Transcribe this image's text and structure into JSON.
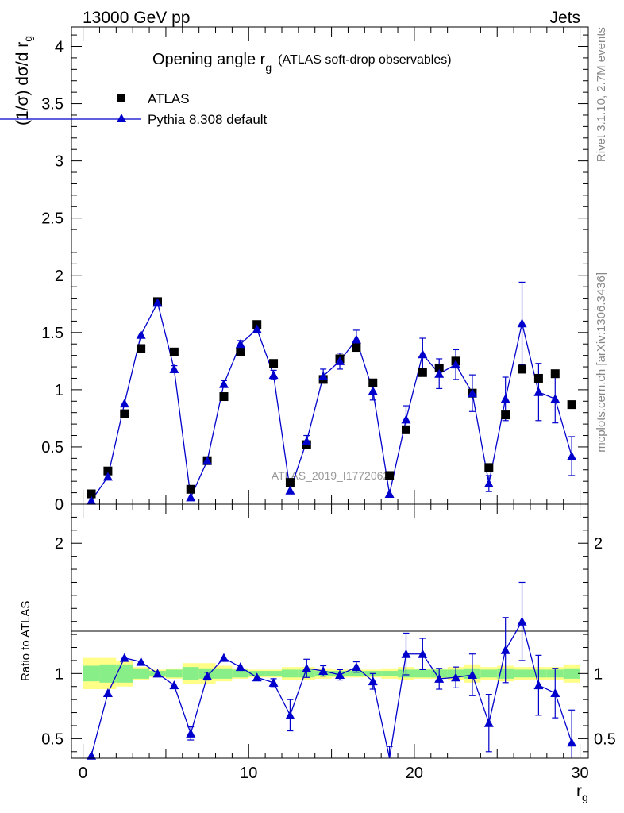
{
  "header": {
    "left": "13000 GeV pp",
    "right": "Jets",
    "side_rivet": "Rivet 3.1.10,  2.7M events",
    "side_mcplots": "mcplots.cern.ch [arXiv:1306.3436]",
    "watermark": "ATLAS_2019_I1772062"
  },
  "chart_data": [
    {
      "type": "line",
      "title": "Opening angle r",
      "title_sub": "g",
      "title_suffix": "(ATLAS soft-drop observables)",
      "ylabel": "(1/σ) dσ/d r",
      "ylabel_sub": "g",
      "xlim": [
        -0.7,
        30.5
      ],
      "ylim": [
        0,
        4.17
      ],
      "yticks": [
        "0",
        "0.5",
        "1",
        "1.5",
        "2",
        "2.5",
        "3",
        "3.5",
        "4"
      ],
      "legend_placement": "top-left",
      "x": [
        0.5,
        1.5,
        2.5,
        3.5,
        4.5,
        5.5,
        6.5,
        7.5,
        8.5,
        9.5,
        10.5,
        11.5,
        12.5,
        13.5,
        14.5,
        15.5,
        16.5,
        17.5,
        18.5,
        19.5,
        20.5,
        21.5,
        22.5,
        23.5,
        24.5,
        25.5,
        26.5,
        27.5,
        28.5,
        29.5
      ],
      "series": [
        {
          "name": "ATLAS",
          "color": "#000000",
          "marker": "square",
          "values": [
            0.09,
            0.29,
            0.79,
            1.36,
            1.77,
            1.33,
            0.13,
            0.38,
            0.94,
            1.33,
            1.57,
            1.23,
            0.19,
            0.52,
            1.09,
            1.27,
            1.37,
            1.06,
            0.25,
            0.65,
            1.15,
            1.19,
            1.25,
            0.97,
            0.32,
            0.78,
            1.18,
            1.1,
            1.14,
            0.87
          ]
        },
        {
          "name": "Pythia 8.308 default",
          "color": "#0000cc",
          "marker": "triangle",
          "values": [
            0.03,
            0.24,
            0.88,
            1.48,
            1.76,
            1.18,
            0.06,
            0.38,
            1.05,
            1.4,
            1.53,
            1.13,
            0.12,
            0.55,
            1.12,
            1.25,
            1.44,
            0.99,
            0.09,
            0.74,
            1.31,
            1.14,
            1.22,
            0.97,
            0.18,
            0.92,
            1.58,
            0.98,
            0.92,
            0.42
          ],
          "errors": [
            0.01,
            0.02,
            0.02,
            0.02,
            0.02,
            0.03,
            0.02,
            0.03,
            0.03,
            0.03,
            0.03,
            0.04,
            0.03,
            0.05,
            0.06,
            0.07,
            0.08,
            0.08,
            0.02,
            0.12,
            0.14,
            0.13,
            0.13,
            0.16,
            0.07,
            0.19,
            0.36,
            0.25,
            0.21,
            0.17
          ]
        }
      ]
    },
    {
      "type": "line",
      "ylabel": "Ratio to ATLAS",
      "xlabel": "r",
      "xlabel_sub": "g",
      "xlim": [
        -0.7,
        30.5
      ],
      "ylim": [
        0.35,
        2.3
      ],
      "xticks": [
        "0",
        "10",
        "20",
        "30"
      ],
      "yticks": [
        "0.5",
        "1",
        "2"
      ],
      "x": [
        0.5,
        1.5,
        2.5,
        3.5,
        4.5,
        5.5,
        6.5,
        7.5,
        8.5,
        9.5,
        10.5,
        11.5,
        12.5,
        13.5,
        14.5,
        15.5,
        16.5,
        17.5,
        18.5,
        19.5,
        20.5,
        21.5,
        22.5,
        23.5,
        24.5,
        25.5,
        26.5,
        27.5,
        28.5,
        29.5
      ],
      "band_outer": [
        0.12,
        0.12,
        0.1,
        0.05,
        0.03,
        0.04,
        0.08,
        0.08,
        0.06,
        0.04,
        0.03,
        0.03,
        0.05,
        0.05,
        0.04,
        0.03,
        0.03,
        0.03,
        0.04,
        0.05,
        0.04,
        0.04,
        0.05,
        0.07,
        0.05,
        0.06,
        0.05,
        0.05,
        0.05,
        0.07
      ],
      "band_inner": [
        0.06,
        0.07,
        0.07,
        0.04,
        0.02,
        0.03,
        0.05,
        0.04,
        0.04,
        0.03,
        0.02,
        0.02,
        0.03,
        0.03,
        0.02,
        0.02,
        0.02,
        0.02,
        0.02,
        0.03,
        0.03,
        0.03,
        0.03,
        0.04,
        0.03,
        0.04,
        0.03,
        0.03,
        0.03,
        0.04
      ],
      "series": [
        {
          "name": "Pythia 8.308 default",
          "color": "#0000cc",
          "values": [
            0.37,
            0.85,
            1.12,
            1.09,
            1.0,
            0.91,
            0.54,
            0.98,
            1.12,
            1.05,
            0.97,
            0.93,
            0.68,
            1.04,
            1.02,
            0.99,
            1.05,
            0.94,
            0.34,
            1.15,
            1.15,
            0.96,
            0.97,
            0.99,
            0.62,
            1.18,
            1.4,
            0.91,
            0.85,
            0.47
          ],
          "errors": [
            0.02,
            0.02,
            0.02,
            0.02,
            0.01,
            0.02,
            0.05,
            0.03,
            0.02,
            0.02,
            0.02,
            0.03,
            0.12,
            0.07,
            0.04,
            0.04,
            0.04,
            0.06,
            0.1,
            0.16,
            0.12,
            0.08,
            0.08,
            0.16,
            0.22,
            0.25,
            0.3,
            0.23,
            0.19,
            0.25
          ]
        }
      ]
    }
  ]
}
